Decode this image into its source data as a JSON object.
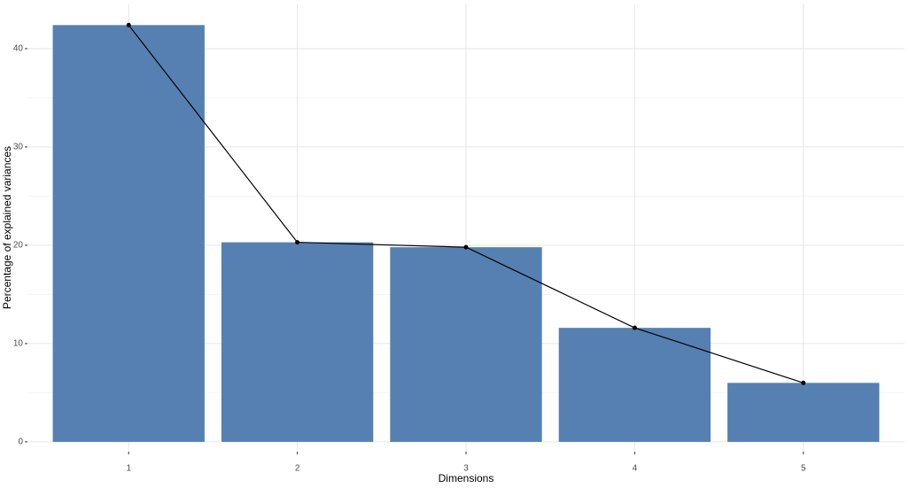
{
  "chart_data": {
    "type": "bar_line",
    "x_label": "Dimensions",
    "y_label": "Percentage of explained variances",
    "categories": [
      "1",
      "2",
      "3",
      "4",
      "5"
    ],
    "values": [
      42.4,
      20.3,
      19.8,
      11.6,
      6.0
    ],
    "color": "#5580b1",
    "line_color": "#000000",
    "ylim": [
      -1,
      44.5
    ],
    "yticks": [
      0,
      10,
      20,
      30,
      40
    ],
    "y_minor_ticks": [
      5,
      15,
      25,
      35
    ],
    "grid": true
  }
}
